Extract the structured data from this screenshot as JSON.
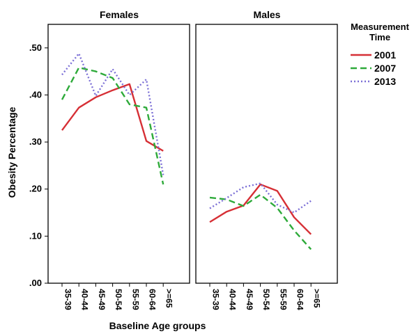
{
  "chart_data": {
    "type": "line",
    "xlabel": "Baseline Age groups",
    "ylabel": "Obesity Percentage",
    "ylim": [
      0,
      0.55
    ],
    "yticks": [
      0,
      0.1,
      0.2,
      0.3,
      0.4,
      0.5
    ],
    "ytick_labels": [
      ".00",
      ".10",
      ".20",
      ".30",
      ".40",
      ".50"
    ],
    "categories": [
      "35-39",
      "40-44",
      "45-49",
      "50-54",
      "55-59",
      "60-64",
      ">=65"
    ],
    "legend": {
      "title_lines": [
        "Measurement",
        "Time"
      ],
      "placement": "top-right",
      "entries": [
        {
          "label": "2001",
          "color": "#d62f35",
          "dash": "solid"
        },
        {
          "label": "2007",
          "color": "#2eaa3a",
          "dash": "dashed"
        },
        {
          "label": "2013",
          "color": "#7b6fd6",
          "dash": "dotted"
        }
      ]
    },
    "panels": [
      {
        "title": "Females",
        "series": [
          {
            "name": "2001",
            "values": [
              0.325,
              0.373,
              0.395,
              0.41,
              0.423,
              0.302,
              0.281
            ]
          },
          {
            "name": "2007",
            "values": [
              0.39,
              0.458,
              0.45,
              0.436,
              0.38,
              0.373,
              0.21
            ]
          },
          {
            "name": "2013",
            "values": [
              0.443,
              0.488,
              0.398,
              0.455,
              0.4,
              0.433,
              0.23
            ]
          }
        ]
      },
      {
        "title": "Males",
        "series": [
          {
            "name": "2001",
            "values": [
              0.13,
              0.152,
              0.165,
              0.21,
              0.196,
              0.14,
              0.104
            ]
          },
          {
            "name": "2007",
            "values": [
              0.182,
              0.178,
              0.164,
              0.188,
              0.16,
              0.112,
              0.072
            ]
          },
          {
            "name": "2013",
            "values": [
              0.159,
              0.181,
              0.204,
              0.212,
              0.167,
              0.15,
              0.175
            ]
          }
        ]
      }
    ]
  }
}
